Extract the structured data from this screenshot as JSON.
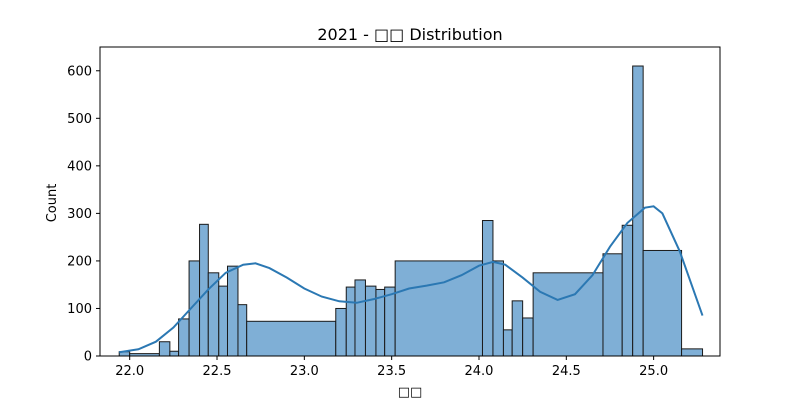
{
  "chart_data": {
    "type": "bar",
    "title": "2021 - □□ Distribution",
    "xlabel": "□□",
    "ylabel": "Count",
    "xlim": [
      21.83,
      25.38
    ],
    "ylim": [
      0,
      650
    ],
    "xticks": [
      22.0,
      22.5,
      23.0,
      23.5,
      24.0,
      24.5,
      25.0
    ],
    "xtick_labels": [
      "22.0",
      "22.5",
      "23.0",
      "23.5",
      "24.0",
      "24.5",
      "25.0"
    ],
    "yticks": [
      0,
      100,
      200,
      300,
      400,
      500,
      600
    ],
    "ytick_labels": [
      "0",
      "100",
      "200",
      "300",
      "400",
      "500",
      "600"
    ],
    "grid": false,
    "bar_color": "#7fafd6",
    "bar_edge_color": "#1a1a1a",
    "kde_color": "#2b78b3",
    "bins": [
      {
        "x0": 21.94,
        "x1": 22.0,
        "count": 9
      },
      {
        "x0": 22.0,
        "x1": 22.17,
        "count": 5
      },
      {
        "x0": 22.17,
        "x1": 22.23,
        "count": 30
      },
      {
        "x0": 22.23,
        "x1": 22.28,
        "count": 10
      },
      {
        "x0": 22.28,
        "x1": 22.34,
        "count": 78
      },
      {
        "x0": 22.34,
        "x1": 22.4,
        "count": 200
      },
      {
        "x0": 22.4,
        "x1": 22.45,
        "count": 277
      },
      {
        "x0": 22.45,
        "x1": 22.51,
        "count": 175
      },
      {
        "x0": 22.51,
        "x1": 22.56,
        "count": 147
      },
      {
        "x0": 22.56,
        "x1": 22.62,
        "count": 189
      },
      {
        "x0": 22.62,
        "x1": 22.67,
        "count": 108
      },
      {
        "x0": 22.67,
        "x1": 23.18,
        "count": 73
      },
      {
        "x0": 23.18,
        "x1": 23.24,
        "count": 100
      },
      {
        "x0": 23.24,
        "x1": 23.29,
        "count": 145
      },
      {
        "x0": 23.29,
        "x1": 23.35,
        "count": 160
      },
      {
        "x0": 23.35,
        "x1": 23.41,
        "count": 147
      },
      {
        "x0": 23.41,
        "x1": 23.46,
        "count": 140
      },
      {
        "x0": 23.46,
        "x1": 23.52,
        "count": 145
      },
      {
        "x0": 23.52,
        "x1": 24.02,
        "count": 200
      },
      {
        "x0": 24.02,
        "x1": 24.08,
        "count": 285
      },
      {
        "x0": 24.08,
        "x1": 24.14,
        "count": 200
      },
      {
        "x0": 24.14,
        "x1": 24.19,
        "count": 55
      },
      {
        "x0": 24.19,
        "x1": 24.25,
        "count": 116
      },
      {
        "x0": 24.25,
        "x1": 24.31,
        "count": 80
      },
      {
        "x0": 24.31,
        "x1": 24.71,
        "count": 175
      },
      {
        "x0": 24.71,
        "x1": 24.82,
        "count": 215
      },
      {
        "x0": 24.82,
        "x1": 24.88,
        "count": 275
      },
      {
        "x0": 24.88,
        "x1": 24.94,
        "count": 610
      },
      {
        "x0": 24.94,
        "x1": 25.16,
        "count": 222
      },
      {
        "x0": 25.16,
        "x1": 25.28,
        "count": 15
      }
    ],
    "kde": {
      "x": [
        21.94,
        22.05,
        22.15,
        22.25,
        22.35,
        22.45,
        22.55,
        22.65,
        22.72,
        22.8,
        22.9,
        23.0,
        23.1,
        23.2,
        23.3,
        23.4,
        23.5,
        23.6,
        23.7,
        23.8,
        23.9,
        24.0,
        24.08,
        24.15,
        24.25,
        24.35,
        24.45,
        24.55,
        24.65,
        24.75,
        24.85,
        24.95,
        25.0,
        25.05,
        25.15,
        25.28
      ],
      "y": [
        8,
        14,
        30,
        60,
        100,
        140,
        175,
        192,
        195,
        185,
        165,
        142,
        125,
        115,
        112,
        120,
        130,
        142,
        148,
        155,
        170,
        190,
        198,
        192,
        165,
        135,
        118,
        130,
        170,
        230,
        280,
        312,
        315,
        300,
        220,
        85
      ]
    }
  }
}
